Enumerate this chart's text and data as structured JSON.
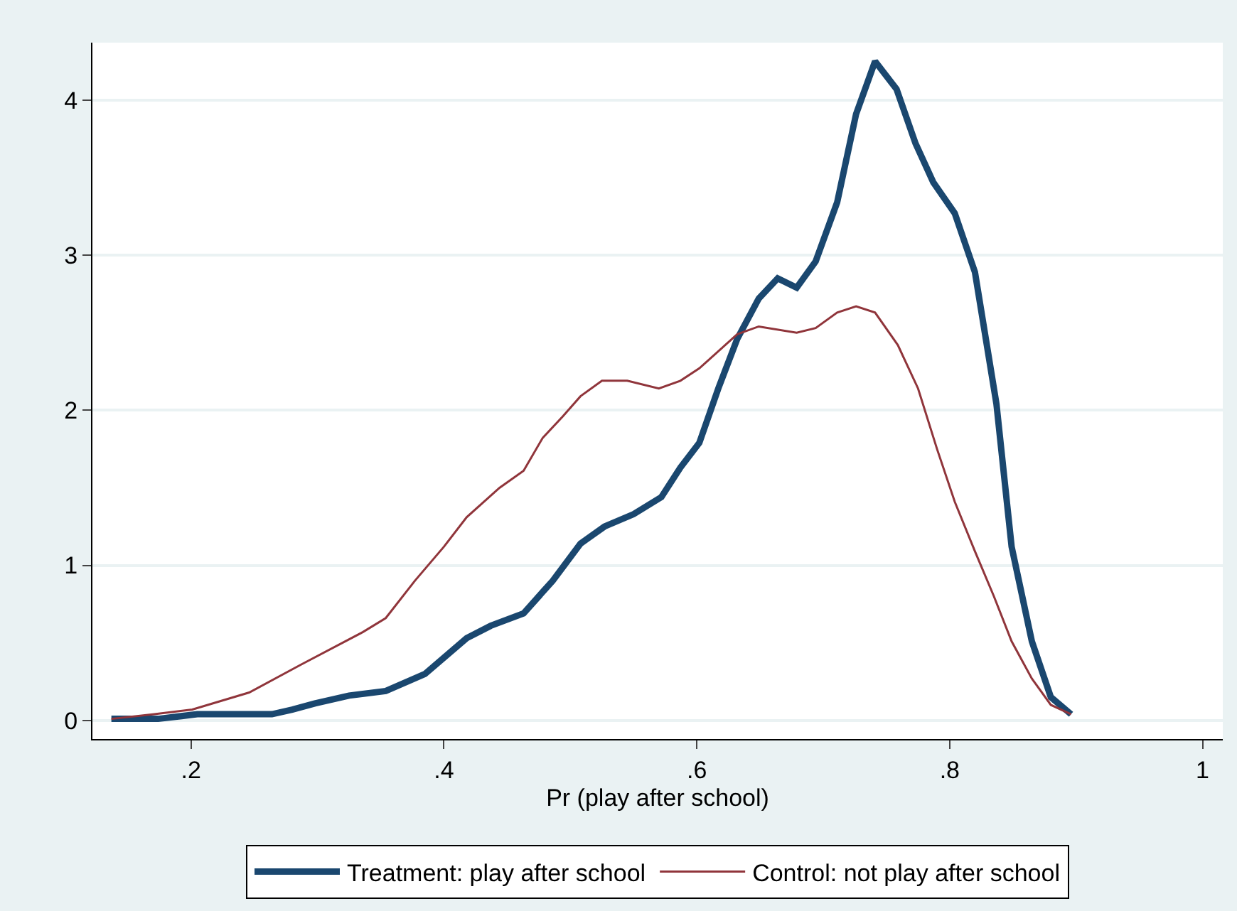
{
  "chart_data": {
    "type": "line",
    "xlabel": "Pr (play after school)",
    "xlim": [
      0.122,
      1.016
    ],
    "ylim": [
      -0.12,
      4.37
    ],
    "xticks": [
      {
        "value": 0.2,
        "label": ".2"
      },
      {
        "value": 0.4,
        "label": ".4"
      },
      {
        "value": 0.6,
        "label": ".6"
      },
      {
        "value": 0.8,
        "label": ".8"
      },
      1
    ],
    "yticks": [
      0,
      1,
      2,
      3,
      4
    ],
    "grid": "y",
    "legend": "bottom",
    "marker": "none",
    "line_style": "solid",
    "series": [
      {
        "name": "Treatment: play after school",
        "color": "#1a476f",
        "x": [
          0.137,
          0.174,
          0.205,
          0.264,
          0.28,
          0.298,
          0.325,
          0.354,
          0.385,
          0.418,
          0.437,
          0.463,
          0.486,
          0.508,
          0.527,
          0.55,
          0.572,
          0.587,
          0.602,
          0.617,
          0.632,
          0.649,
          0.664,
          0.679,
          0.694,
          0.711,
          0.726,
          0.741,
          0.758,
          0.773,
          0.787,
          0.804,
          0.82,
          0.837,
          0.849,
          0.865,
          0.88,
          0.896
        ],
        "values": [
          0.01,
          0.01,
          0.04,
          0.04,
          0.07,
          0.11,
          0.16,
          0.19,
          0.3,
          0.53,
          0.61,
          0.69,
          0.9,
          1.14,
          1.25,
          1.33,
          1.44,
          1.63,
          1.79,
          2.14,
          2.46,
          2.72,
          2.85,
          2.79,
          2.96,
          3.34,
          3.91,
          4.25,
          4.07,
          3.72,
          3.47,
          3.27,
          2.89,
          2.04,
          1.12,
          0.51,
          0.15,
          0.04
        ]
      },
      {
        "name": "Control: not play after school",
        "color": "#90353b",
        "x": [
          0.137,
          0.171,
          0.201,
          0.246,
          0.287,
          0.336,
          0.354,
          0.377,
          0.4,
          0.418,
          0.444,
          0.463,
          0.478,
          0.494,
          0.508,
          0.525,
          0.545,
          0.57,
          0.587,
          0.602,
          0.632,
          0.649,
          0.679,
          0.694,
          0.711,
          0.726,
          0.741,
          0.759,
          0.775,
          0.79,
          0.804,
          0.82,
          0.835,
          0.849,
          0.865,
          0.88,
          0.896
        ],
        "values": [
          0.01,
          0.04,
          0.07,
          0.18,
          0.36,
          0.57,
          0.66,
          0.9,
          1.12,
          1.31,
          1.5,
          1.61,
          1.82,
          1.96,
          2.09,
          2.19,
          2.19,
          2.14,
          2.19,
          2.27,
          2.49,
          2.54,
          2.5,
          2.53,
          2.63,
          2.67,
          2.63,
          2.42,
          2.14,
          1.75,
          1.41,
          1.09,
          0.8,
          0.51,
          0.27,
          0.1,
          0.04
        ]
      }
    ]
  }
}
